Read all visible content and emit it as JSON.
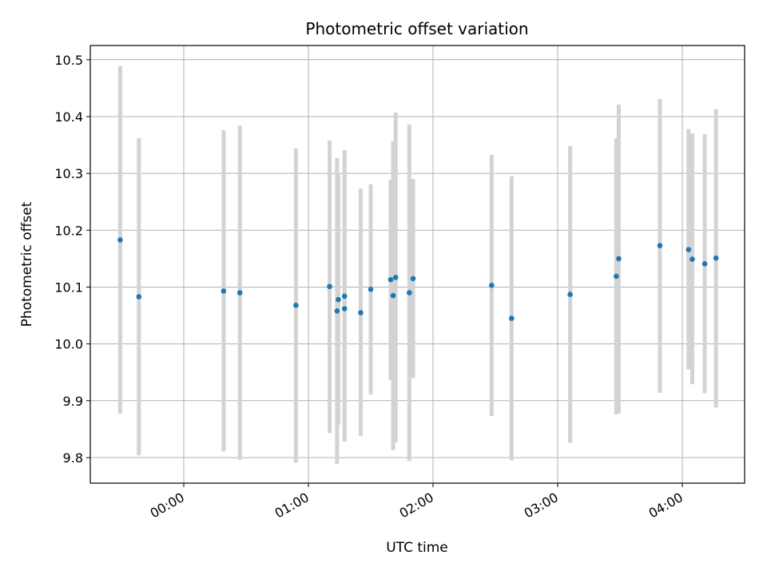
{
  "chart_data": {
    "type": "scatter",
    "title": "Photometric offset variation",
    "xlabel": "UTC time",
    "ylabel": "Photometric offset",
    "x_unit": "hours_utc",
    "xlim": [
      -0.75,
      4.5
    ],
    "ylim": [
      9.755,
      10.525
    ],
    "x_ticks": [
      {
        "value": 0,
        "label": "00:00"
      },
      {
        "value": 1,
        "label": "01:00"
      },
      {
        "value": 2,
        "label": "02:00"
      },
      {
        "value": 3,
        "label": "03:00"
      },
      {
        "value": 4,
        "label": "04:00"
      }
    ],
    "y_ticks": [
      {
        "value": 9.8,
        "label": "9.8"
      },
      {
        "value": 9.9,
        "label": "9.9"
      },
      {
        "value": 10.0,
        "label": "10.0"
      },
      {
        "value": 10.1,
        "label": "10.1"
      },
      {
        "value": 10.2,
        "label": "10.2"
      },
      {
        "value": 10.3,
        "label": "10.3"
      },
      {
        "value": 10.4,
        "label": "10.4"
      },
      {
        "value": 10.5,
        "label": "10.5"
      }
    ],
    "grid": true,
    "marker_color": "#1f77b4",
    "errorbar_color": "#d3d3d3",
    "points": [
      {
        "x": -0.51,
        "y": 10.183,
        "ymin": 9.877,
        "ymax": 10.489
      },
      {
        "x": -0.36,
        "y": 10.083,
        "ymin": 9.804,
        "ymax": 10.362
      },
      {
        "x": 0.32,
        "y": 10.093,
        "ymin": 9.811,
        "ymax": 10.376
      },
      {
        "x": 0.45,
        "y": 10.09,
        "ymin": 9.796,
        "ymax": 10.384
      },
      {
        "x": 0.9,
        "y": 10.068,
        "ymin": 9.791,
        "ymax": 10.344
      },
      {
        "x": 1.17,
        "y": 10.101,
        "ymin": 9.843,
        "ymax": 10.358
      },
      {
        "x": 1.23,
        "y": 10.058,
        "ymin": 9.789,
        "ymax": 10.327
      },
      {
        "x": 1.24,
        "y": 10.078,
        "ymin": 9.858,
        "ymax": 10.298
      },
      {
        "x": 1.29,
        "y": 10.062,
        "ymin": 9.828,
        "ymax": 10.341
      },
      {
        "x": 1.29,
        "y": 10.084,
        "ymin": 9.834,
        "ymax": 10.334
      },
      {
        "x": 1.42,
        "y": 10.055,
        "ymin": 9.838,
        "ymax": 10.273
      },
      {
        "x": 1.5,
        "y": 10.096,
        "ymin": 9.911,
        "ymax": 10.281
      },
      {
        "x": 1.66,
        "y": 10.113,
        "ymin": 9.936,
        "ymax": 10.289
      },
      {
        "x": 1.68,
        "y": 10.085,
        "ymin": 9.813,
        "ymax": 10.357
      },
      {
        "x": 1.7,
        "y": 10.117,
        "ymin": 9.827,
        "ymax": 10.407
      },
      {
        "x": 1.81,
        "y": 10.09,
        "ymin": 9.794,
        "ymax": 10.386
      },
      {
        "x": 1.84,
        "y": 10.115,
        "ymin": 9.94,
        "ymax": 10.29
      },
      {
        "x": 2.47,
        "y": 10.103,
        "ymin": 9.873,
        "ymax": 10.333
      },
      {
        "x": 2.63,
        "y": 10.045,
        "ymin": 9.795,
        "ymax": 10.295
      },
      {
        "x": 3.1,
        "y": 10.087,
        "ymin": 9.826,
        "ymax": 10.348
      },
      {
        "x": 3.47,
        "y": 10.119,
        "ymin": 9.876,
        "ymax": 10.362
      },
      {
        "x": 3.49,
        "y": 10.15,
        "ymin": 9.878,
        "ymax": 10.421
      },
      {
        "x": 3.82,
        "y": 10.173,
        "ymin": 9.914,
        "ymax": 10.431
      },
      {
        "x": 4.05,
        "y": 10.166,
        "ymin": 9.955,
        "ymax": 10.378
      },
      {
        "x": 4.08,
        "y": 10.149,
        "ymin": 9.929,
        "ymax": 10.37
      },
      {
        "x": 4.18,
        "y": 10.141,
        "ymin": 9.913,
        "ymax": 10.369
      },
      {
        "x": 4.27,
        "y": 10.151,
        "ymin": 9.888,
        "ymax": 10.413
      }
    ]
  }
}
